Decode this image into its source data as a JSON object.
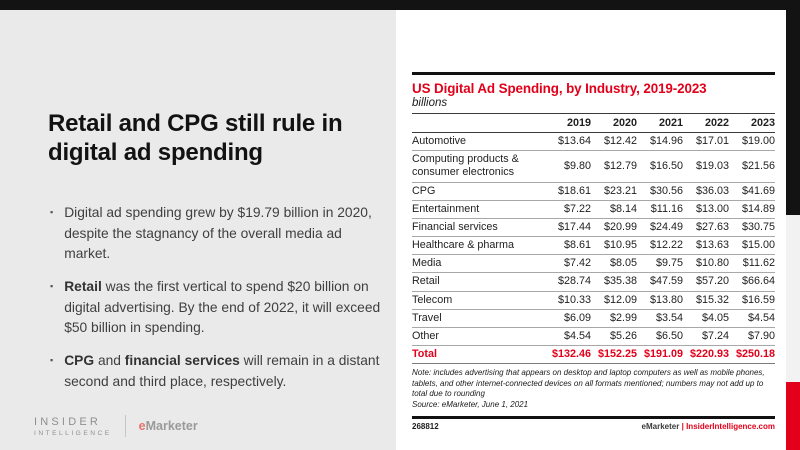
{
  "slide": {
    "headline": "Retail and CPG still rule in digital ad spending",
    "bullets": [
      {
        "segments": [
          {
            "text": "Digital ad spending grew by $19.79 billion in 2020, despite the stagnancy of the overall media ad market.",
            "bold": false
          }
        ]
      },
      {
        "segments": [
          {
            "text": "Retail",
            "bold": true
          },
          {
            "text": " was the first vertical to spend $20 billion on digital advertising. By the end of 2022, it will exceed $50 billion in spending.",
            "bold": false
          }
        ]
      },
      {
        "segments": [
          {
            "text": "CPG",
            "bold": true
          },
          {
            "text": " and ",
            "bold": false
          },
          {
            "text": "financial services",
            "bold": true
          },
          {
            "text": " will remain in a distant second and third place, respectively.",
            "bold": false
          }
        ]
      }
    ],
    "brand": {
      "insider_line1": "INSIDER",
      "insider_line2": "INTELLIGENCE",
      "emarketer_e": "e",
      "emarketer_rest": "Marketer"
    }
  },
  "chart_data": {
    "type": "table",
    "title": "US Digital Ad Spending, by Industry, 2019-2023",
    "subtitle": "billions",
    "categories": [
      "2019",
      "2020",
      "2021",
      "2022",
      "2023"
    ],
    "rows": [
      {
        "label": "Automotive",
        "values": [
          "$13.64",
          "$12.42",
          "$14.96",
          "$17.01",
          "$19.00"
        ]
      },
      {
        "label": "Computing products & consumer electronics",
        "values": [
          "$9.80",
          "$12.79",
          "$16.50",
          "$19.03",
          "$21.56"
        ]
      },
      {
        "label": "CPG",
        "values": [
          "$18.61",
          "$23.21",
          "$30.56",
          "$36.03",
          "$41.69"
        ]
      },
      {
        "label": "Entertainment",
        "values": [
          "$7.22",
          "$8.14",
          "$11.16",
          "$13.00",
          "$14.89"
        ]
      },
      {
        "label": "Financial services",
        "values": [
          "$17.44",
          "$20.99",
          "$24.49",
          "$27.63",
          "$30.75"
        ]
      },
      {
        "label": "Healthcare & pharma",
        "values": [
          "$8.61",
          "$10.95",
          "$12.22",
          "$13.63",
          "$15.00"
        ]
      },
      {
        "label": "Media",
        "values": [
          "$7.42",
          "$8.05",
          "$9.75",
          "$10.80",
          "$11.62"
        ]
      },
      {
        "label": "Retail",
        "values": [
          "$28.74",
          "$35.38",
          "$47.59",
          "$57.20",
          "$66.64"
        ]
      },
      {
        "label": "Telecom",
        "values": [
          "$10.33",
          "$12.09",
          "$13.80",
          "$15.32",
          "$16.59"
        ]
      },
      {
        "label": "Travel",
        "values": [
          "$6.09",
          "$2.99",
          "$3.54",
          "$4.05",
          "$4.54"
        ]
      },
      {
        "label": "Other",
        "values": [
          "$4.54",
          "$5.26",
          "$6.50",
          "$7.24",
          "$7.90"
        ]
      }
    ],
    "total": {
      "label": "Total",
      "values": [
        "$132.46",
        "$152.25",
        "$191.09",
        "$220.93",
        "$250.18"
      ]
    },
    "note": "Note: includes advertising that appears on desktop and laptop computers as well as mobile phones, tablets, and other internet-connected devices on all formats mentioned; numbers may not add up to total due to rounding",
    "source": "Source: eMarketer, June 1, 2021",
    "chart_id": "268812",
    "footer_brand": "eMarketer",
    "footer_separator": "|",
    "footer_url": "InsiderIntelligence.com"
  },
  "colors": {
    "accent_red": "#e2001a",
    "strip_black": "#131313",
    "background": "#eaeaea",
    "card": "#ffffff"
  }
}
